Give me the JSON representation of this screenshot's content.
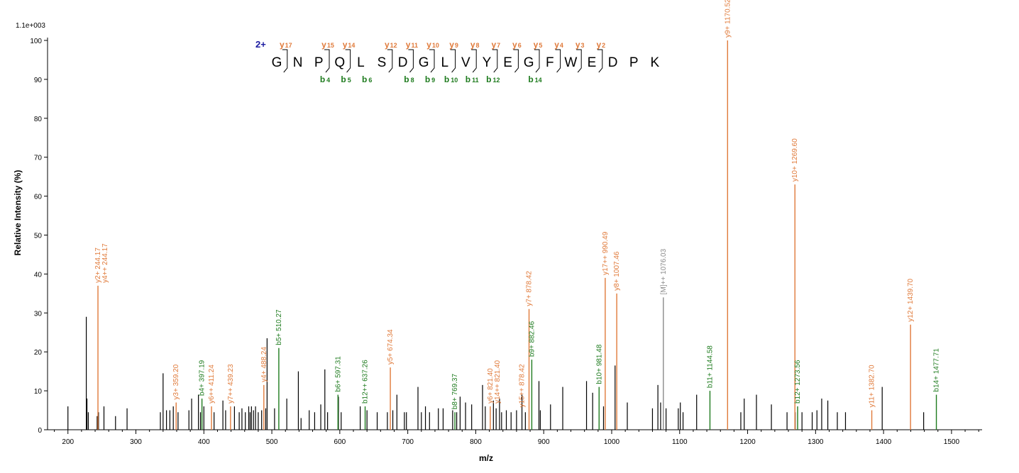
{
  "chart_data": {
    "type": "bar",
    "title": "",
    "xlabel": "m/z",
    "ylabel": "Relative   Intensity (%)",
    "y_scale_label": "1.1e+003",
    "xlim": [
      170,
      1545
    ],
    "ylim": [
      0,
      100
    ],
    "x_ticks": [
      200,
      300,
      400,
      500,
      600,
      700,
      800,
      900,
      1000,
      1100,
      1200,
      1300,
      1400,
      1500
    ],
    "y_ticks": [
      0,
      10,
      20,
      30,
      40,
      50,
      60,
      70,
      80,
      90,
      100
    ],
    "colors": {
      "y": "#e07a3a",
      "b": "#1e7b1e",
      "other": "#8a8a8a",
      "unassigned": "#000000",
      "axis": "#000000"
    },
    "peptide": {
      "charge": "2+",
      "sequence": [
        "G",
        "N",
        "P",
        "Q",
        "L",
        "S",
        "D",
        "G",
        "L",
        "V",
        "Y",
        "E",
        "G",
        "F",
        "W",
        "E",
        "D",
        "P",
        "K"
      ],
      "y_ions": [
        {
          "after": 1,
          "n": "17"
        },
        {
          "after": 3,
          "n": "15"
        },
        {
          "after": 4,
          "n": "14"
        },
        {
          "after": 6,
          "n": "12"
        },
        {
          "after": 7,
          "n": "11"
        },
        {
          "after": 8,
          "n": "10"
        },
        {
          "after": 9,
          "n": "9"
        },
        {
          "after": 10,
          "n": "8"
        },
        {
          "after": 11,
          "n": "7"
        },
        {
          "after": 12,
          "n": "6"
        },
        {
          "after": 13,
          "n": "5"
        },
        {
          "after": 14,
          "n": "4"
        },
        {
          "after": 15,
          "n": "3"
        },
        {
          "after": 16,
          "n": "2"
        }
      ],
      "b_ions": [
        {
          "after": 3,
          "n": "4"
        },
        {
          "after": 4,
          "n": "5"
        },
        {
          "after": 5,
          "n": "6"
        },
        {
          "after": 7,
          "n": "8"
        },
        {
          "after": 8,
          "n": "9"
        },
        {
          "after": 9,
          "n": "10"
        },
        {
          "after": 10,
          "n": "11"
        },
        {
          "after": 11,
          "n": "12"
        },
        {
          "after": 13,
          "n": "14"
        }
      ]
    },
    "annotated_peaks": [
      {
        "mz": 244.17,
        "intensity": 37,
        "type": "y",
        "label": "y2+ 244.17"
      },
      {
        "mz": 244.17,
        "intensity": 37,
        "type": "y",
        "label": "y4++ 244.17",
        "offset": 1
      },
      {
        "mz": 359.2,
        "intensity": 7,
        "type": "y",
        "label": "y3+ 359.20"
      },
      {
        "mz": 397.19,
        "intensity": 8,
        "type": "b",
        "label": "b4+ 397.19"
      },
      {
        "mz": 411.24,
        "intensity": 6,
        "type": "y",
        "label": "y6++ 411.24"
      },
      {
        "mz": 439.23,
        "intensity": 6,
        "type": "y",
        "label": "y7++ 439.23"
      },
      {
        "mz": 488.24,
        "intensity": 11.5,
        "type": "y",
        "label": "y4+ 488.24"
      },
      {
        "mz": 510.27,
        "intensity": 21,
        "type": "b",
        "label": "b5+ 510.27"
      },
      {
        "mz": 597.31,
        "intensity": 9,
        "type": "b",
        "label": "b6+ 597.31"
      },
      {
        "mz": 637.26,
        "intensity": 6,
        "type": "b",
        "label": "b12++ 637.26"
      },
      {
        "mz": 674.34,
        "intensity": 16,
        "type": "y",
        "label": "y5+ 674.34"
      },
      {
        "mz": 769.37,
        "intensity": 4.5,
        "type": "b",
        "label": "b8+ 769.37"
      },
      {
        "mz": 821.4,
        "intensity": 6,
        "type": "y",
        "label": "y6+ 821.40"
      },
      {
        "mz": 821.4,
        "intensity": 6,
        "type": "y",
        "label": "y14++ 821.40",
        "offset": 1
      },
      {
        "mz": 878.42,
        "intensity": 31,
        "type": "y",
        "label": "y7+ 878.42"
      },
      {
        "mz": 878.42,
        "intensity": 5,
        "type": "y",
        "label": "y15++ 878.42",
        "offset": -1
      },
      {
        "mz": 882.46,
        "intensity": 18,
        "type": "b",
        "label": "b9+ 882.46"
      },
      {
        "mz": 981.48,
        "intensity": 11,
        "type": "b",
        "label": "b10+ 981.48"
      },
      {
        "mz": 990.49,
        "intensity": 39,
        "type": "y",
        "label": "y17++ 990.49"
      },
      {
        "mz": 1007.46,
        "intensity": 35,
        "type": "y",
        "label": "y8+ 1007.46"
      },
      {
        "mz": 1076.03,
        "intensity": 34,
        "type": "other",
        "label": "[M]++ 1076.03"
      },
      {
        "mz": 1144.58,
        "intensity": 10,
        "type": "b",
        "label": "b11+ 1144.58"
      },
      {
        "mz": 1170.52,
        "intensity": 100,
        "type": "y",
        "label": "y9+ 1170.52"
      },
      {
        "mz": 1269.6,
        "intensity": 63,
        "type": "y",
        "label": "y10+ 1269.60"
      },
      {
        "mz": 1273.56,
        "intensity": 6,
        "type": "b",
        "label": "b12+ 1273.56"
      },
      {
        "mz": 1382.7,
        "intensity": 5,
        "type": "y",
        "label": "y11+ 1382.70"
      },
      {
        "mz": 1439.7,
        "intensity": 27,
        "type": "y",
        "label": "y12+ 1439.70"
      },
      {
        "mz": 1477.71,
        "intensity": 9,
        "type": "b",
        "label": "b14+ 1477.71"
      }
    ],
    "unannotated_peaks": [
      [
        200,
        6
      ],
      [
        227,
        29
      ],
      [
        228,
        8
      ],
      [
        230,
        4.5
      ],
      [
        243,
        3.5
      ],
      [
        245,
        4.5
      ],
      [
        253,
        6
      ],
      [
        270,
        3.5
      ],
      [
        287,
        5.5
      ],
      [
        336,
        4.5
      ],
      [
        340,
        14.5
      ],
      [
        345,
        5
      ],
      [
        350,
        5
      ],
      [
        355,
        6
      ],
      [
        362,
        4.5
      ],
      [
        378,
        5
      ],
      [
        382,
        8
      ],
      [
        392,
        9
      ],
      [
        395,
        4.5
      ],
      [
        400,
        6
      ],
      [
        415,
        4.5
      ],
      [
        428,
        7.5
      ],
      [
        432,
        5
      ],
      [
        445,
        6
      ],
      [
        452,
        4.5
      ],
      [
        456,
        5.5
      ],
      [
        461,
        4.5
      ],
      [
        466,
        6
      ],
      [
        468,
        4.5
      ],
      [
        470,
        6
      ],
      [
        473,
        5
      ],
      [
        476,
        6
      ],
      [
        480,
        4.5
      ],
      [
        485,
        5
      ],
      [
        491,
        5.5
      ],
      [
        493,
        23.5
      ],
      [
        504,
        5.5
      ],
      [
        522,
        8
      ],
      [
        539,
        15
      ],
      [
        543,
        3
      ],
      [
        555,
        5
      ],
      [
        563,
        4.5
      ],
      [
        572,
        6.5
      ],
      [
        578,
        15.5
      ],
      [
        582,
        4.5
      ],
      [
        598,
        8.5
      ],
      [
        602,
        4.5
      ],
      [
        630,
        6
      ],
      [
        640,
        5
      ],
      [
        655,
        4.5
      ],
      [
        670,
        4.5
      ],
      [
        678,
        5
      ],
      [
        684,
        9
      ],
      [
        695,
        4.5
      ],
      [
        698,
        4.5
      ],
      [
        715,
        11
      ],
      [
        720,
        4.5
      ],
      [
        726,
        6
      ],
      [
        732,
        4.5
      ],
      [
        745,
        5.5
      ],
      [
        752,
        5.5
      ],
      [
        766,
        5
      ],
      [
        772,
        4.5
      ],
      [
        777,
        8.5
      ],
      [
        785,
        7
      ],
      [
        794,
        6.5
      ],
      [
        810,
        11.5
      ],
      [
        814,
        6
      ],
      [
        826,
        7.5
      ],
      [
        830,
        5.5
      ],
      [
        835,
        8
      ],
      [
        838,
        4.5
      ],
      [
        845,
        5
      ],
      [
        852,
        4.5
      ],
      [
        860,
        5
      ],
      [
        868,
        9
      ],
      [
        873,
        4.5
      ],
      [
        893,
        12.5
      ],
      [
        895,
        5
      ],
      [
        910,
        6.5
      ],
      [
        928,
        11
      ],
      [
        963,
        12.5
      ],
      [
        972,
        9.5
      ],
      [
        988,
        6
      ],
      [
        1005,
        16.5
      ],
      [
        1023,
        7
      ],
      [
        1060,
        5.5
      ],
      [
        1068,
        11.5
      ],
      [
        1072,
        7
      ],
      [
        1080,
        5.5
      ],
      [
        1098,
        5.5
      ],
      [
        1101,
        7
      ],
      [
        1105,
        4.5
      ],
      [
        1125,
        9
      ],
      [
        1190,
        4.5
      ],
      [
        1195,
        8
      ],
      [
        1213,
        9
      ],
      [
        1235,
        6.5
      ],
      [
        1258,
        4.5
      ],
      [
        1270,
        4.5
      ],
      [
        1280,
        4.5
      ],
      [
        1295,
        4.5
      ],
      [
        1302,
        5
      ],
      [
        1309,
        8
      ],
      [
        1318,
        7.5
      ],
      [
        1332,
        4.5
      ],
      [
        1344,
        4.5
      ],
      [
        1398,
        11
      ],
      [
        1459,
        4.5
      ]
    ]
  }
}
